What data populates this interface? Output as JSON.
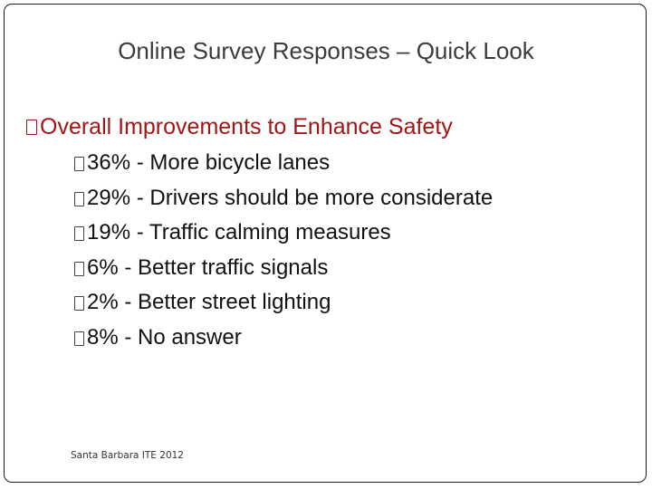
{
  "slide": {
    "title": "Online Survey Responses – Quick Look",
    "heading": "Overall Improvements to Enhance Safety",
    "items": [
      {
        "label": "36% - More bicycle lanes"
      },
      {
        "label": "29% - Drivers should be more considerate"
      },
      {
        "label": "19% - Traffic calming measures"
      },
      {
        "label": "6% - Better traffic signals"
      },
      {
        "label": "2% - Better street lighting"
      },
      {
        "label": "8% - No answer"
      }
    ],
    "footer": "Santa Barbara ITE 2012"
  },
  "colors": {
    "heading": "#a31515",
    "title": "#3b3b3b",
    "text": "#111111"
  },
  "icons": {
    "bullet": "square-bullet-icon"
  }
}
